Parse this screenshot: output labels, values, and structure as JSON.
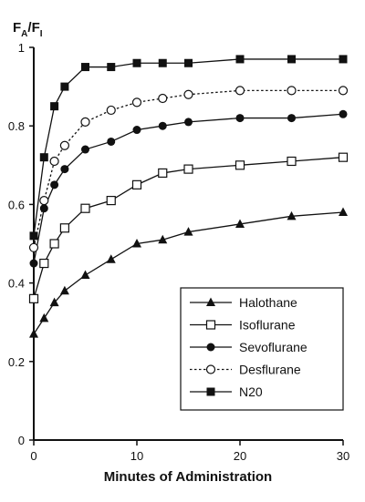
{
  "chart_data": {
    "type": "line",
    "ylabel_main": "F",
    "ylabel_sub_a": "A",
    "ylabel_slash": "/F",
    "ylabel_sub_i": "I",
    "xlabel": "Minutes of Administration",
    "xlim": [
      0,
      30
    ],
    "ylim": [
      0,
      1
    ],
    "xticks": [
      0,
      10,
      20,
      30
    ],
    "yticks": [
      0,
      0.2,
      0.4,
      0.6,
      0.8,
      1
    ],
    "ytick_labels": [
      "0",
      "0.2",
      "0.4",
      "0.6",
      "0.8",
      "1"
    ],
    "grid": false,
    "legend_position": "bottom-right",
    "series": [
      {
        "name": "Halothane",
        "marker": "triangle-filled",
        "line": "solid",
        "x": [
          0,
          1,
          2,
          3,
          5,
          7.5,
          10,
          12.5,
          15,
          20,
          25,
          30
        ],
        "y": [
          0.27,
          0.31,
          0.35,
          0.38,
          0.42,
          0.46,
          0.5,
          0.51,
          0.53,
          0.55,
          0.57,
          0.58
        ]
      },
      {
        "name": "Isoflurane",
        "marker": "square-open",
        "line": "solid",
        "x": [
          0,
          1,
          2,
          3,
          5,
          7.5,
          10,
          12.5,
          15,
          20,
          25,
          30
        ],
        "y": [
          0.36,
          0.45,
          0.5,
          0.54,
          0.59,
          0.61,
          0.65,
          0.68,
          0.69,
          0.7,
          0.71,
          0.72
        ]
      },
      {
        "name": "Sevoflurane",
        "marker": "circle-filled",
        "line": "solid",
        "x": [
          0,
          1,
          2,
          3,
          5,
          7.5,
          10,
          12.5,
          15,
          20,
          25,
          30
        ],
        "y": [
          0.45,
          0.59,
          0.65,
          0.69,
          0.74,
          0.76,
          0.79,
          0.8,
          0.81,
          0.82,
          0.82,
          0.83
        ]
      },
      {
        "name": "Desflurane",
        "marker": "circle-open",
        "line": "dotted",
        "x": [
          0,
          1,
          2,
          3,
          5,
          7.5,
          10,
          12.5,
          15,
          20,
          25,
          30
        ],
        "y": [
          0.49,
          0.61,
          0.71,
          0.75,
          0.81,
          0.84,
          0.86,
          0.87,
          0.88,
          0.89,
          0.89,
          0.89
        ]
      },
      {
        "name": "N20",
        "marker": "square-filled",
        "line": "solid",
        "x": [
          0,
          1,
          2,
          3,
          5,
          7.5,
          10,
          12.5,
          15,
          20,
          25,
          30
        ],
        "y": [
          0.52,
          0.72,
          0.85,
          0.9,
          0.95,
          0.95,
          0.96,
          0.96,
          0.96,
          0.97,
          0.97,
          0.97
        ]
      }
    ]
  }
}
